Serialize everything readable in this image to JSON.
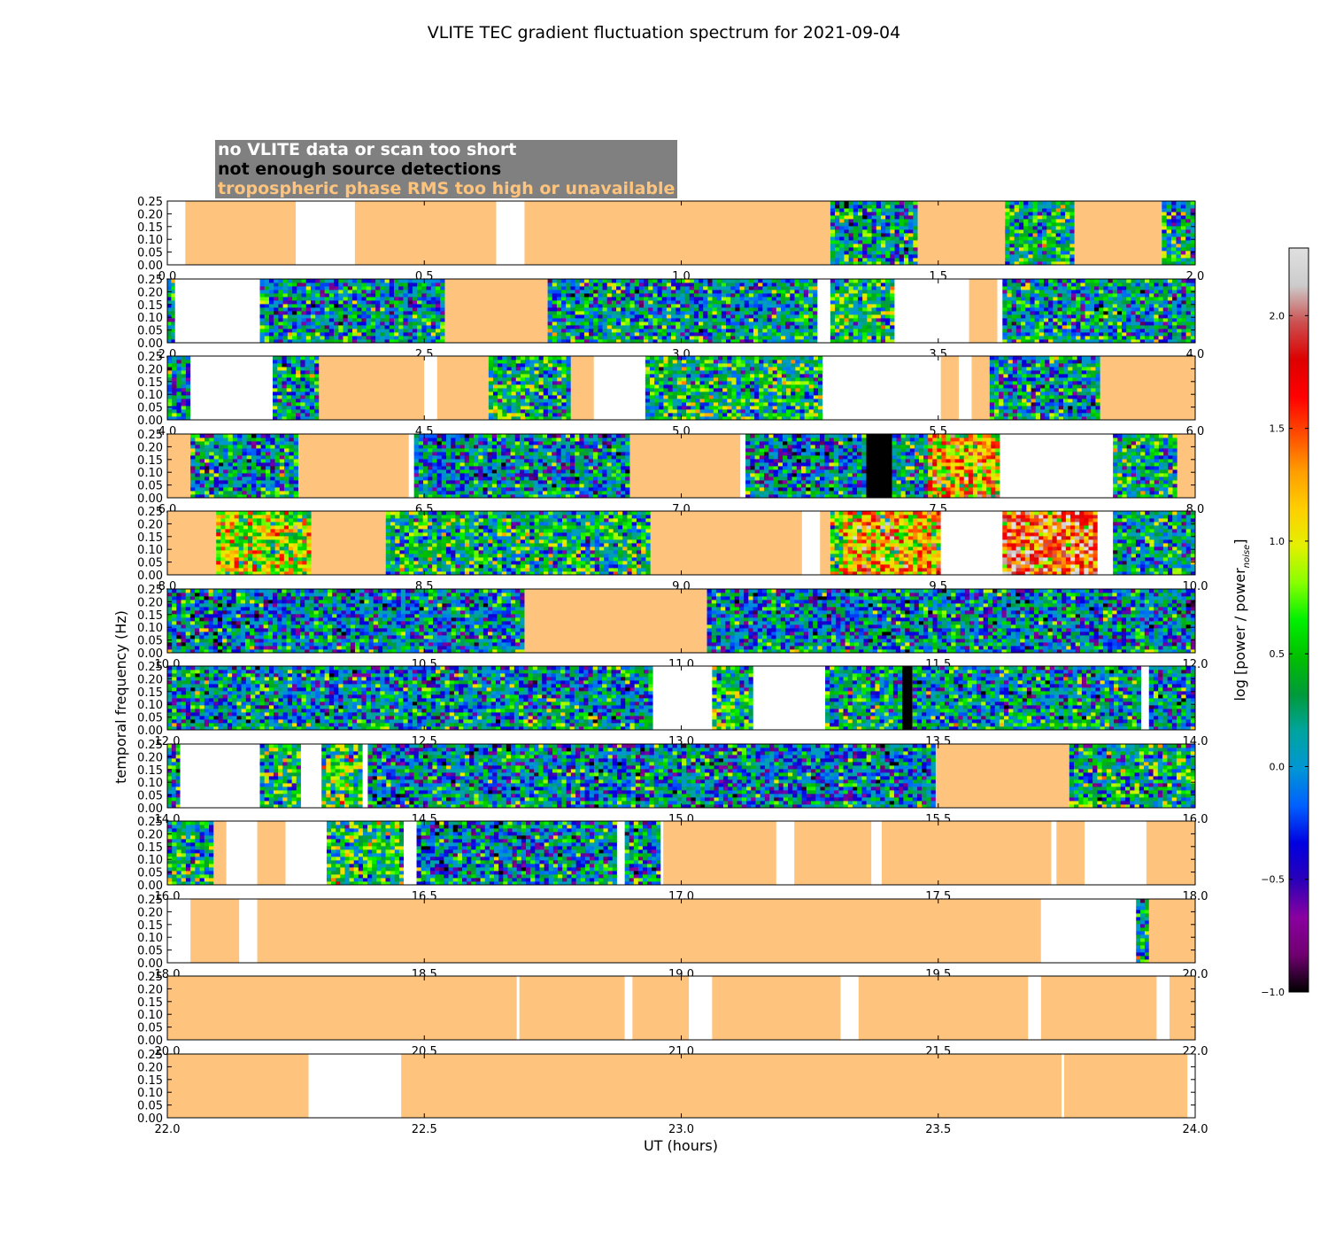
{
  "title": "VLITE TEC gradient fluctuation spectrum for 2021-09-04",
  "legend": {
    "no_data": "no VLITE data or scan too short",
    "few_sources": "not enough source detections",
    "tropo": "tropospheric phase RMS too high or unavailable"
  },
  "colors": {
    "no_data": "#ffffff",
    "few_sources": "#000000",
    "tropo": "#fec47e",
    "legend_bg": "#808080",
    "legend_no_data_text": "#ffffff",
    "legend_few_sources_text": "#000000",
    "legend_tropo_text": "#fec47e"
  },
  "chart_data": {
    "type": "heatmap",
    "title": "VLITE TEC gradient fluctuation spectrum for 2021-09-04",
    "xlabel": "UT (hours)",
    "ylabel": "temporal frequency (Hz)",
    "ylim": [
      0,
      0.25
    ],
    "yticks": [
      "0.00",
      "0.05",
      "0.10",
      "0.15",
      "0.20",
      "0.25"
    ],
    "colorbar": {
      "label": "log [power / power",
      "label_sub": "noise",
      "label_tail": "]",
      "range": [
        -1.0,
        2.3
      ],
      "ticks": [
        "−1.0",
        "−0.5",
        "0.0",
        "0.5",
        "1.0",
        "1.5",
        "2.0"
      ],
      "tick_values": [
        -1.0,
        -0.5,
        0.0,
        0.5,
        1.0,
        1.5,
        2.0
      ]
    },
    "panels": [
      {
        "xlim": [
          0,
          2
        ],
        "xticks": [
          "0.0",
          "0.5",
          "1.0",
          "1.5",
          "2.0"
        ],
        "segments": [
          {
            "start": 0.0,
            "end": 0.035,
            "kind": "nodata"
          },
          {
            "start": 0.035,
            "end": 0.25,
            "kind": "tropo"
          },
          {
            "start": 0.25,
            "end": 0.365,
            "kind": "nodata"
          },
          {
            "start": 0.365,
            "end": 0.64,
            "kind": "tropo"
          },
          {
            "start": 0.64,
            "end": 0.695,
            "kind": "nodata"
          },
          {
            "start": 0.695,
            "end": 1.29,
            "kind": "tropo"
          },
          {
            "start": 1.29,
            "end": 1.46,
            "kind": "spec",
            "level": 0.1
          },
          {
            "start": 1.46,
            "end": 1.63,
            "kind": "tropo"
          },
          {
            "start": 1.63,
            "end": 1.765,
            "kind": "spec",
            "level": 0.25
          },
          {
            "start": 1.765,
            "end": 1.935,
            "kind": "tropo"
          },
          {
            "start": 1.935,
            "end": 2.0,
            "kind": "spec",
            "level": 0.2
          }
        ]
      },
      {
        "xlim": [
          2,
          4
        ],
        "xticks": [
          "2.0",
          "2.5",
          "3.0",
          "3.5",
          "4.0"
        ],
        "segments": [
          {
            "start": 2.0,
            "end": 2.015,
            "kind": "spec",
            "level": 0.1
          },
          {
            "start": 2.015,
            "end": 2.18,
            "kind": "nodata"
          },
          {
            "start": 2.18,
            "end": 2.54,
            "kind": "spec",
            "level": 0.05
          },
          {
            "start": 2.54,
            "end": 2.74,
            "kind": "tropo"
          },
          {
            "start": 2.74,
            "end": 3.265,
            "kind": "spec",
            "level": 0.1
          },
          {
            "start": 3.265,
            "end": 3.29,
            "kind": "nodata"
          },
          {
            "start": 3.29,
            "end": 3.415,
            "kind": "spec",
            "level": 0.4
          },
          {
            "start": 3.415,
            "end": 3.56,
            "kind": "nodata"
          },
          {
            "start": 3.56,
            "end": 3.615,
            "kind": "tropo"
          },
          {
            "start": 3.615,
            "end": 3.625,
            "kind": "nodata"
          },
          {
            "start": 3.625,
            "end": 4.0,
            "kind": "spec",
            "level": 0.1
          }
        ]
      },
      {
        "xlim": [
          4,
          6
        ],
        "xticks": [
          "4.0",
          "4.5",
          "5.0",
          "5.5",
          "6.0"
        ],
        "segments": [
          {
            "start": 4.0,
            "end": 4.045,
            "kind": "spec",
            "level": 0.1
          },
          {
            "start": 4.045,
            "end": 4.205,
            "kind": "nodata"
          },
          {
            "start": 4.205,
            "end": 4.295,
            "kind": "spec",
            "level": 0.2
          },
          {
            "start": 4.295,
            "end": 4.5,
            "kind": "tropo"
          },
          {
            "start": 4.5,
            "end": 4.525,
            "kind": "nodata"
          },
          {
            "start": 4.525,
            "end": 4.625,
            "kind": "tropo"
          },
          {
            "start": 4.625,
            "end": 4.785,
            "kind": "spec",
            "level": 0.25
          },
          {
            "start": 4.785,
            "end": 4.83,
            "kind": "tropo"
          },
          {
            "start": 4.83,
            "end": 4.93,
            "kind": "nodata"
          },
          {
            "start": 4.93,
            "end": 5.275,
            "kind": "spec",
            "level": 0.3
          },
          {
            "start": 5.275,
            "end": 5.505,
            "kind": "nodata"
          },
          {
            "start": 5.505,
            "end": 5.54,
            "kind": "tropo"
          },
          {
            "start": 5.54,
            "end": 5.565,
            "kind": "nodata"
          },
          {
            "start": 5.565,
            "end": 5.6,
            "kind": "tropo"
          },
          {
            "start": 5.6,
            "end": 5.815,
            "kind": "spec",
            "level": 0.05
          },
          {
            "start": 5.815,
            "end": 6.0,
            "kind": "tropo"
          }
        ]
      },
      {
        "xlim": [
          6,
          8
        ],
        "xticks": [
          "6.0",
          "6.5",
          "7.0",
          "7.5",
          "8.0"
        ],
        "segments": [
          {
            "start": 6.0,
            "end": 6.045,
            "kind": "tropo"
          },
          {
            "start": 6.045,
            "end": 6.255,
            "kind": "spec",
            "level": 0.1
          },
          {
            "start": 6.255,
            "end": 6.47,
            "kind": "tropo"
          },
          {
            "start": 6.47,
            "end": 6.48,
            "kind": "nodata"
          },
          {
            "start": 6.48,
            "end": 6.9,
            "kind": "spec",
            "level": 0.0
          },
          {
            "start": 6.9,
            "end": 7.115,
            "kind": "tropo"
          },
          {
            "start": 7.115,
            "end": 7.125,
            "kind": "nodata"
          },
          {
            "start": 7.125,
            "end": 7.36,
            "kind": "spec",
            "level": 0.0
          },
          {
            "start": 7.36,
            "end": 7.41,
            "kind": "black"
          },
          {
            "start": 7.41,
            "end": 7.48,
            "kind": "spec",
            "level": 0.1
          },
          {
            "start": 7.48,
            "end": 7.62,
            "kind": "spec",
            "level": 1.2
          },
          {
            "start": 7.62,
            "end": 7.84,
            "kind": "nodata"
          },
          {
            "start": 7.84,
            "end": 7.965,
            "kind": "spec",
            "level": 0.2
          },
          {
            "start": 7.965,
            "end": 8.0,
            "kind": "tropo"
          }
        ]
      },
      {
        "xlim": [
          8,
          10
        ],
        "xticks": [
          "8.0",
          "8.5",
          "9.0",
          "9.5",
          "10.0"
        ],
        "segments": [
          {
            "start": 8.0,
            "end": 8.095,
            "kind": "tropo"
          },
          {
            "start": 8.095,
            "end": 8.28,
            "kind": "spec",
            "level": 0.9
          },
          {
            "start": 8.28,
            "end": 8.425,
            "kind": "tropo"
          },
          {
            "start": 8.425,
            "end": 8.94,
            "kind": "spec",
            "level": 0.3
          },
          {
            "start": 8.94,
            "end": 9.235,
            "kind": "tropo"
          },
          {
            "start": 9.235,
            "end": 9.27,
            "kind": "nodata"
          },
          {
            "start": 9.27,
            "end": 9.29,
            "kind": "tropo"
          },
          {
            "start": 9.29,
            "end": 9.315,
            "kind": "spec",
            "level": 0.6
          },
          {
            "start": 9.315,
            "end": 9.505,
            "kind": "spec",
            "level": 1.2
          },
          {
            "start": 9.505,
            "end": 9.625,
            "kind": "nodata"
          },
          {
            "start": 9.625,
            "end": 9.81,
            "kind": "spec",
            "level": 1.6
          },
          {
            "start": 9.81,
            "end": 9.84,
            "kind": "nodata"
          },
          {
            "start": 9.84,
            "end": 10.0,
            "kind": "spec",
            "level": 0.1
          }
        ]
      },
      {
        "xlim": [
          10,
          12
        ],
        "xticks": [
          "10.0",
          "10.5",
          "11.0",
          "11.5",
          "12.0"
        ],
        "segments": [
          {
            "start": 10.0,
            "end": 10.695,
            "kind": "spec",
            "level": 0.0
          },
          {
            "start": 10.695,
            "end": 11.05,
            "kind": "tropo"
          },
          {
            "start": 11.05,
            "end": 12.0,
            "kind": "spec",
            "level": 0.0
          }
        ]
      },
      {
        "xlim": [
          12,
          14
        ],
        "xticks": [
          "12.0",
          "12.5",
          "13.0",
          "13.5",
          "14.0"
        ],
        "segments": [
          {
            "start": 12.0,
            "end": 12.945,
            "kind": "spec",
            "level": 0.05
          },
          {
            "start": 12.945,
            "end": 13.06,
            "kind": "nodata"
          },
          {
            "start": 13.06,
            "end": 13.14,
            "kind": "spec",
            "level": 0.3
          },
          {
            "start": 13.14,
            "end": 13.28,
            "kind": "nodata"
          },
          {
            "start": 13.28,
            "end": 13.43,
            "kind": "spec",
            "level": 0.2
          },
          {
            "start": 13.43,
            "end": 13.45,
            "kind": "black"
          },
          {
            "start": 13.45,
            "end": 13.895,
            "kind": "spec",
            "level": 0.1
          },
          {
            "start": 13.895,
            "end": 13.91,
            "kind": "nodata"
          },
          {
            "start": 13.91,
            "end": 14.0,
            "kind": "spec",
            "level": 0.05
          }
        ]
      },
      {
        "xlim": [
          14,
          16
        ],
        "xticks": [
          "14.0",
          "14.5",
          "15.0",
          "15.5",
          "16.0"
        ],
        "segments": [
          {
            "start": 14.0,
            "end": 14.025,
            "kind": "spec",
            "level": 0.1
          },
          {
            "start": 14.025,
            "end": 14.18,
            "kind": "nodata"
          },
          {
            "start": 14.18,
            "end": 14.26,
            "kind": "spec",
            "level": 0.3
          },
          {
            "start": 14.26,
            "end": 14.3,
            "kind": "nodata"
          },
          {
            "start": 14.3,
            "end": 14.38,
            "kind": "spec",
            "level": 0.5
          },
          {
            "start": 14.38,
            "end": 14.39,
            "kind": "nodata"
          },
          {
            "start": 14.39,
            "end": 15.495,
            "kind": "spec",
            "level": 0.0
          },
          {
            "start": 15.495,
            "end": 15.755,
            "kind": "tropo"
          },
          {
            "start": 15.755,
            "end": 16.0,
            "kind": "spec",
            "level": 0.2
          }
        ]
      },
      {
        "xlim": [
          16,
          18
        ],
        "xticks": [
          "16.0",
          "16.5",
          "17.0",
          "17.5",
          "18.0"
        ],
        "segments": [
          {
            "start": 16.0,
            "end": 16.09,
            "kind": "spec",
            "level": 0.25
          },
          {
            "start": 16.09,
            "end": 16.115,
            "kind": "tropo"
          },
          {
            "start": 16.115,
            "end": 16.175,
            "kind": "nodata"
          },
          {
            "start": 16.175,
            "end": 16.23,
            "kind": "tropo"
          },
          {
            "start": 16.23,
            "end": 16.31,
            "kind": "nodata"
          },
          {
            "start": 16.31,
            "end": 16.46,
            "kind": "spec",
            "level": 0.4
          },
          {
            "start": 16.46,
            "end": 16.485,
            "kind": "nodata"
          },
          {
            "start": 16.485,
            "end": 16.875,
            "kind": "spec",
            "level": 0.0
          },
          {
            "start": 16.875,
            "end": 16.89,
            "kind": "nodata"
          },
          {
            "start": 16.89,
            "end": 16.96,
            "kind": "spec",
            "level": 0.05
          },
          {
            "start": 16.96,
            "end": 16.965,
            "kind": "nodata"
          },
          {
            "start": 16.965,
            "end": 17.185,
            "kind": "tropo"
          },
          {
            "start": 17.185,
            "end": 17.22,
            "kind": "nodata"
          },
          {
            "start": 17.22,
            "end": 17.37,
            "kind": "tropo"
          },
          {
            "start": 17.37,
            "end": 17.39,
            "kind": "nodata"
          },
          {
            "start": 17.39,
            "end": 17.72,
            "kind": "tropo"
          },
          {
            "start": 17.72,
            "end": 17.73,
            "kind": "nodata"
          },
          {
            "start": 17.73,
            "end": 17.785,
            "kind": "tropo"
          },
          {
            "start": 17.785,
            "end": 17.905,
            "kind": "nodata"
          },
          {
            "start": 17.905,
            "end": 18.0,
            "kind": "tropo"
          }
        ]
      },
      {
        "xlim": [
          18,
          20
        ],
        "xticks": [
          "18.0",
          "18.5",
          "19.0",
          "19.5",
          "20.0"
        ],
        "segments": [
          {
            "start": 18.0,
            "end": 18.045,
            "kind": "nodata"
          },
          {
            "start": 18.045,
            "end": 18.14,
            "kind": "tropo"
          },
          {
            "start": 18.14,
            "end": 18.175,
            "kind": "nodata"
          },
          {
            "start": 18.175,
            "end": 19.7,
            "kind": "tropo"
          },
          {
            "start": 19.7,
            "end": 19.885,
            "kind": "nodata"
          },
          {
            "start": 19.885,
            "end": 19.91,
            "kind": "spec",
            "level": 0.2
          },
          {
            "start": 19.91,
            "end": 20.0,
            "kind": "tropo"
          }
        ]
      },
      {
        "xlim": [
          20,
          22
        ],
        "xticks": [
          "20.0",
          "20.5",
          "21.0",
          "21.5",
          "22.0"
        ],
        "segments": [
          {
            "start": 20.0,
            "end": 20.68,
            "kind": "tropo"
          },
          {
            "start": 20.68,
            "end": 20.685,
            "kind": "nodata"
          },
          {
            "start": 20.685,
            "end": 20.89,
            "kind": "tropo"
          },
          {
            "start": 20.89,
            "end": 20.905,
            "kind": "nodata"
          },
          {
            "start": 20.905,
            "end": 21.015,
            "kind": "tropo"
          },
          {
            "start": 21.015,
            "end": 21.06,
            "kind": "nodata"
          },
          {
            "start": 21.06,
            "end": 21.31,
            "kind": "tropo"
          },
          {
            "start": 21.31,
            "end": 21.345,
            "kind": "nodata"
          },
          {
            "start": 21.345,
            "end": 21.675,
            "kind": "tropo"
          },
          {
            "start": 21.675,
            "end": 21.7,
            "kind": "nodata"
          },
          {
            "start": 21.7,
            "end": 21.925,
            "kind": "tropo"
          },
          {
            "start": 21.925,
            "end": 21.95,
            "kind": "nodata"
          },
          {
            "start": 21.95,
            "end": 22.0,
            "kind": "tropo"
          }
        ]
      },
      {
        "xlim": [
          22,
          24
        ],
        "xticks": [
          "22.0",
          "22.5",
          "23.0",
          "23.5",
          "24.0"
        ],
        "segments": [
          {
            "start": 22.0,
            "end": 22.275,
            "kind": "tropo"
          },
          {
            "start": 22.275,
            "end": 22.455,
            "kind": "nodata"
          },
          {
            "start": 22.455,
            "end": 23.74,
            "kind": "tropo"
          },
          {
            "start": 23.74,
            "end": 23.745,
            "kind": "nodata"
          },
          {
            "start": 23.745,
            "end": 23.985,
            "kind": "tropo"
          },
          {
            "start": 23.985,
            "end": 24.0,
            "kind": "nodata"
          }
        ]
      }
    ]
  }
}
